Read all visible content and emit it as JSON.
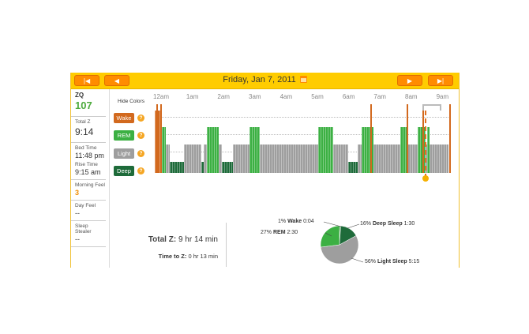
{
  "nav": {
    "first_label": "|◀",
    "prev_label": "◀",
    "next_label": "▶",
    "last_label": "▶|",
    "date": "Friday, Jan 7, 2011"
  },
  "sidebar": {
    "zq_label": "ZQ",
    "zq_value": "107",
    "totalz_label": "Total Z",
    "totalz_value": "9:14",
    "bedtime_label": "Bed Time",
    "bedtime_value": "11:48 pm",
    "risetime_label": "Rise Time",
    "risetime_value": "9:15 am",
    "morning_label": "Morning Feel",
    "morning_value": "3",
    "day_label": "Day Feel",
    "day_value": "--",
    "stealer_label": "Sleep Stealer",
    "stealer_value": "--"
  },
  "legend": {
    "hide_colors": "Hide Colors",
    "wake": "Wake",
    "rem": "REM",
    "light": "Light",
    "deep": "Deep",
    "help": "?"
  },
  "colors": {
    "wake": "#d2691e",
    "rem": "#3cb043",
    "light": "#9e9e9e",
    "deep": "#1e6b3a",
    "accent": "#ffcc00",
    "button": "#ff8c00"
  },
  "hours": [
    "12am",
    "1am",
    "2am",
    "3am",
    "4am",
    "5am",
    "6am",
    "7am",
    "8am",
    "9am"
  ],
  "hypnogram": [
    {
      "start": 0,
      "end": 9,
      "stage": "wake"
    },
    {
      "start": 9,
      "end": 14,
      "stage": "rem"
    },
    {
      "start": 14,
      "end": 18,
      "stage": "light"
    },
    {
      "start": 18,
      "end": 36,
      "stage": "deep"
    },
    {
      "start": 36,
      "end": 57,
      "stage": "light"
    },
    {
      "start": 57,
      "end": 60,
      "stage": "deep"
    },
    {
      "start": 60,
      "end": 64,
      "stage": "light"
    },
    {
      "start": 64,
      "end": 78,
      "stage": "rem"
    },
    {
      "start": 78,
      "end": 82,
      "stage": "light"
    },
    {
      "start": 82,
      "end": 96,
      "stage": "deep"
    },
    {
      "start": 96,
      "end": 116,
      "stage": "light"
    },
    {
      "start": 116,
      "end": 129,
      "stage": "rem"
    },
    {
      "start": 129,
      "end": 200,
      "stage": "light"
    },
    {
      "start": 200,
      "end": 219,
      "stage": "rem"
    },
    {
      "start": 219,
      "end": 237,
      "stage": "light"
    },
    {
      "start": 237,
      "end": 249,
      "stage": "deep"
    },
    {
      "start": 249,
      "end": 254,
      "stage": "light"
    },
    {
      "start": 254,
      "end": 264,
      "stage": "rem"
    },
    {
      "start": 264,
      "end": 265,
      "stage": "wake"
    },
    {
      "start": 265,
      "end": 268,
      "stage": "rem"
    },
    {
      "start": 268,
      "end": 301,
      "stage": "light"
    },
    {
      "start": 301,
      "end": 309,
      "stage": "rem"
    },
    {
      "start": 309,
      "end": 310,
      "stage": "wake"
    },
    {
      "start": 310,
      "end": 322,
      "stage": "light"
    },
    {
      "start": 322,
      "end": 332,
      "stage": "rem"
    },
    {
      "start": 332,
      "end": 334,
      "stage": "light"
    },
    {
      "start": 334,
      "end": 337,
      "stage": "rem"
    },
    {
      "start": 337,
      "end": 360,
      "stage": "light"
    }
  ],
  "wake_spikes": [
    2,
    7,
    264,
    309,
    328,
    361
  ],
  "summary": {
    "total_z_label": "Total Z:",
    "total_z_value": "9 hr 14 min",
    "time_to_z_label": "Time to Z:",
    "time_to_z_value": "0 hr 13 min"
  },
  "pie": {
    "wake": {
      "pct": "1%",
      "name": "Wake",
      "time": "0:04",
      "value": 1
    },
    "deep": {
      "pct": "16%",
      "name": "Deep Sleep",
      "time": "1:30",
      "value": 16
    },
    "light": {
      "pct": "56%",
      "name": "Light Sleep",
      "time": "5:15",
      "value": 56
    },
    "rem": {
      "pct": "27%",
      "name": "REM",
      "time": "2:30",
      "value": 27
    }
  }
}
